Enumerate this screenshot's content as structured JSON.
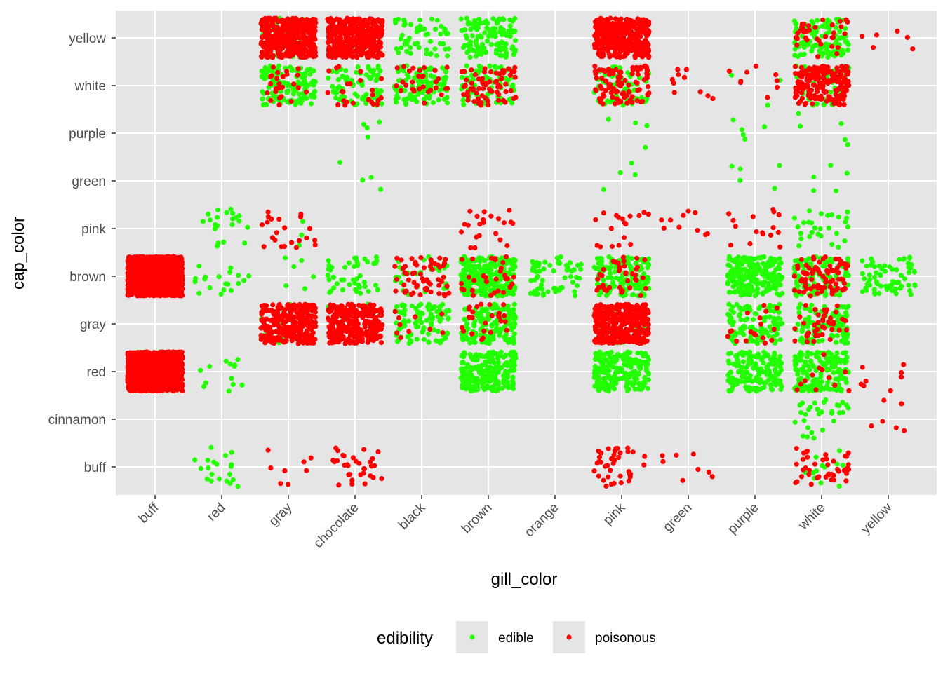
{
  "chart_data": {
    "type": "scatter",
    "subtype": "jitter",
    "title": "",
    "xlabel": "gill_color",
    "ylabel": "cap_color",
    "x_categories": [
      "buff",
      "red",
      "gray",
      "chocolate",
      "black",
      "brown",
      "orange",
      "pink",
      "green",
      "purple",
      "white",
      "yellow"
    ],
    "y_categories": [
      "buff",
      "cinnamon",
      "red",
      "gray",
      "brown",
      "pink",
      "green",
      "purple",
      "white",
      "yellow"
    ],
    "legend": {
      "title": "edibility",
      "position": "bottom",
      "entries": [
        {
          "label": "edible",
          "color": "#22ff00"
        },
        {
          "label": "poisonous",
          "color": "#ff0000"
        }
      ]
    },
    "colors": {
      "edible": "#22ff00",
      "poisonous": "#ff0000",
      "panel": "#e5e5e5",
      "grid": "#ffffff"
    },
    "series": [
      {
        "name": "edible",
        "points": [
          [
            "red",
            "red",
            13
          ],
          [
            "red",
            "pink",
            21
          ],
          [
            "red",
            "brown",
            19
          ],
          [
            "red",
            "buff",
            20
          ],
          [
            "gray",
            "yellow",
            40
          ],
          [
            "gray",
            "white",
            120
          ],
          [
            "gray",
            "pink",
            3
          ],
          [
            "gray",
            "brown",
            6
          ],
          [
            "gray",
            "gray",
            15
          ],
          [
            "chocolate",
            "white",
            80
          ],
          [
            "chocolate",
            "purple",
            4
          ],
          [
            "chocolate",
            "green",
            4
          ],
          [
            "chocolate",
            "brown",
            45
          ],
          [
            "chocolate",
            "gray",
            10
          ],
          [
            "black",
            "yellow",
            55
          ],
          [
            "black",
            "white",
            100
          ],
          [
            "black",
            "brown",
            30
          ],
          [
            "black",
            "gray",
            100
          ],
          [
            "brown",
            "yellow",
            130
          ],
          [
            "brown",
            "white",
            80
          ],
          [
            "brown",
            "brown",
            260
          ],
          [
            "brown",
            "gray",
            160
          ],
          [
            "brown",
            "red",
            220
          ],
          [
            "orange",
            "brown",
            60
          ],
          [
            "pink",
            "white",
            70
          ],
          [
            "pink",
            "purple",
            4
          ],
          [
            "pink",
            "green",
            4
          ],
          [
            "pink",
            "brown",
            140
          ],
          [
            "pink",
            "gray",
            20
          ],
          [
            "pink",
            "red",
            220
          ],
          [
            "purple",
            "white",
            3
          ],
          [
            "purple",
            "purple",
            5
          ],
          [
            "purple",
            "green",
            5
          ],
          [
            "purple",
            "brown",
            200
          ],
          [
            "purple",
            "gray",
            110
          ],
          [
            "purple",
            "red",
            160
          ],
          [
            "white",
            "yellow",
            110
          ],
          [
            "white",
            "white",
            50
          ],
          [
            "white",
            "purple",
            5
          ],
          [
            "white",
            "green",
            5
          ],
          [
            "white",
            "pink",
            28
          ],
          [
            "white",
            "brown",
            110
          ],
          [
            "white",
            "gray",
            110
          ],
          [
            "white",
            "red",
            170
          ],
          [
            "white",
            "cinnamon",
            30
          ],
          [
            "white",
            "buff",
            12
          ],
          [
            "yellow",
            "brown",
            70
          ]
        ]
      },
      {
        "name": "poisonous",
        "points": [
          [
            "buff",
            "brown",
            1300
          ],
          [
            "buff",
            "red",
            1300
          ],
          [
            "gray",
            "yellow",
            380
          ],
          [
            "gray",
            "white",
            25
          ],
          [
            "gray",
            "pink",
            22
          ],
          [
            "gray",
            "gray",
            300
          ],
          [
            "gray",
            "buff",
            8
          ],
          [
            "chocolate",
            "yellow",
            400
          ],
          [
            "chocolate",
            "white",
            25
          ],
          [
            "chocolate",
            "gray",
            300
          ],
          [
            "chocolate",
            "buff",
            32
          ],
          [
            "black",
            "white",
            30
          ],
          [
            "black",
            "brown",
            60
          ],
          [
            "black",
            "gray",
            10
          ],
          [
            "brown",
            "white",
            70
          ],
          [
            "brown",
            "pink",
            22
          ],
          [
            "brown",
            "brown",
            30
          ],
          [
            "brown",
            "gray",
            25
          ],
          [
            "pink",
            "yellow",
            380
          ],
          [
            "pink",
            "white",
            100
          ],
          [
            "pink",
            "pink",
            18
          ],
          [
            "pink",
            "brown",
            40
          ],
          [
            "pink",
            "gray",
            380
          ],
          [
            "pink",
            "buff",
            38
          ],
          [
            "green",
            "white",
            10
          ],
          [
            "green",
            "pink",
            10
          ],
          [
            "green",
            "buff",
            8
          ],
          [
            "purple",
            "white",
            10
          ],
          [
            "purple",
            "pink",
            16
          ],
          [
            "purple",
            "gray",
            18
          ],
          [
            "white",
            "yellow",
            35
          ],
          [
            "white",
            "white",
            190
          ],
          [
            "white",
            "brown",
            80
          ],
          [
            "white",
            "gray",
            40
          ],
          [
            "white",
            "red",
            12
          ],
          [
            "white",
            "buff",
            42
          ],
          [
            "yellow",
            "yellow",
            6
          ],
          [
            "yellow",
            "red",
            8
          ],
          [
            "yellow",
            "cinnamon",
            6
          ]
        ]
      }
    ]
  }
}
